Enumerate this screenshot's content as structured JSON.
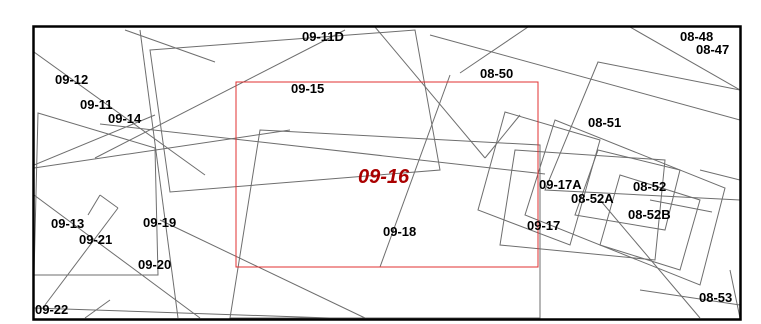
{
  "map": {
    "highlight_label": "09-16",
    "highlight_color": "#aa0000",
    "frame_color": "#e03030",
    "line_color": "#6e6e6e",
    "border_color": "#000000",
    "labels": {
      "l_09_11D": "09-11D",
      "l_08_48": "08-48",
      "l_08_47": "08-47",
      "l_09_12": "09-12",
      "l_08_50": "08-50",
      "l_09_15": "09-15",
      "l_09_11": "09-11",
      "l_09_14": "09-14",
      "l_08_51": "08-51",
      "l_09_17A": "09-17A",
      "l_08_52": "08-52",
      "l_08_52A": "08-52A",
      "l_08_52B": "08-52B",
      "l_09_13": "09-13",
      "l_09_19": "09-19",
      "l_09_18": "09-18",
      "l_09_17": "09-17",
      "l_09_21": "09-21",
      "l_09_20": "09-20",
      "l_08_53": "08-53",
      "l_09_22": "09-22"
    }
  }
}
